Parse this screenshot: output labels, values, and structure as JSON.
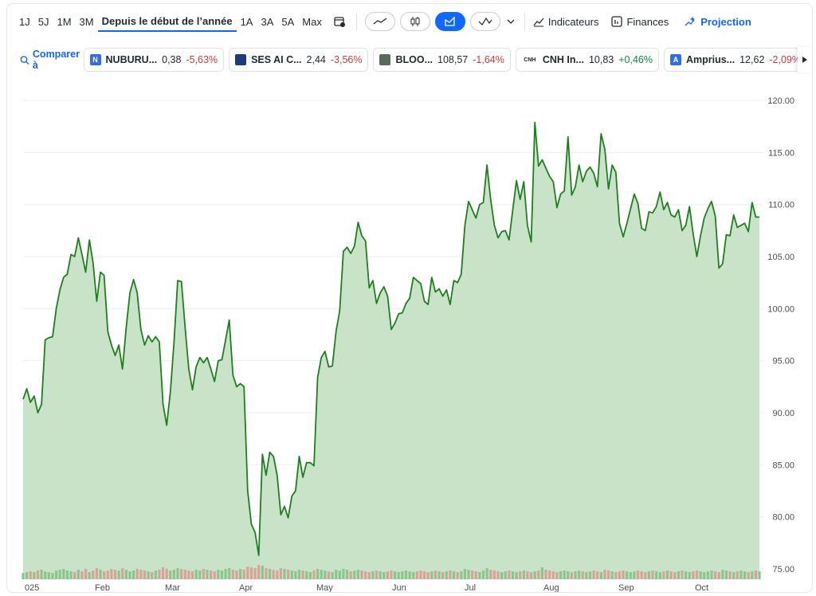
{
  "range_tabs": [
    {
      "label": "1J"
    },
    {
      "label": "5J"
    },
    {
      "label": "1M"
    },
    {
      "label": "3M"
    },
    {
      "label": "Depuis le début de l’année"
    },
    {
      "label": "1A"
    },
    {
      "label": "3A"
    },
    {
      "label": "5A"
    },
    {
      "label": "Max"
    }
  ],
  "active_range": "Depuis le début de l’année",
  "tools": {
    "indicators": "Indicateurs",
    "finances": "Finances",
    "projection": "Projection"
  },
  "compare": {
    "label": "Comparer à",
    "tickers": [
      {
        "logo": "N",
        "logo_color": "#3a6be0",
        "name": "NUBURU...",
        "price": "0,38",
        "change": "-5,63%",
        "dir": "neg"
      },
      {
        "logo": "",
        "logo_color": "#1d3b7a",
        "name": "SES AI C...",
        "price": "2,44",
        "change": "-3,56%",
        "dir": "neg"
      },
      {
        "logo": "",
        "logo_color": "#5a6a5a",
        "name": "BLOO...",
        "price": "108,57",
        "change": "-1,64%",
        "dir": "neg"
      },
      {
        "logo": "CNH",
        "logo_color": "#222222",
        "name": "CNH In...",
        "price": "10,83",
        "change": "+0,46%",
        "dir": "pos"
      },
      {
        "logo": "A",
        "logo_color": "#2f6fe6",
        "name": "Amprius...",
        "price": "12,62",
        "change": "-2,09%",
        "dir": "neg"
      }
    ]
  },
  "chart_data": {
    "type": "area",
    "x_tick_labels": [
      "025",
      "Feb",
      "Mar",
      "Apr",
      "May",
      "Jun",
      "Jul",
      "Aug",
      "Sep",
      "Oct"
    ],
    "y_tick_labels": [
      "75.00",
      "80.00",
      "85.00",
      "90.00",
      "95.00",
      "100.00",
      "105.00",
      "110.00",
      "115.00",
      "120.00"
    ],
    "ylim": [
      74,
      121
    ],
    "grid": true,
    "colors": {
      "line": "#1f7f1f",
      "fill": "#c8e3c8",
      "vol_up": "#8cc68c",
      "vol_down": "#d9a29a"
    },
    "series": [
      {
        "values": [
          91.3,
          92.3,
          91.0,
          91.6,
          90.0,
          90.8,
          97.0,
          97.2,
          97.3,
          100.0,
          101.8,
          103.0,
          103.3,
          105.2,
          105.0,
          106.8,
          105.2,
          103.5,
          106.6,
          104.4,
          100.7,
          103.5,
          103.2,
          97.8,
          96.5,
          95.5,
          96.5,
          94.2,
          98.2,
          101.5,
          102.8,
          101.5,
          98.0,
          96.5,
          97.4,
          96.8,
          97.3,
          96.8,
          90.8,
          88.8,
          92.0,
          96.8,
          102.7,
          102.6,
          98.2,
          94.2,
          92.2,
          94.4,
          95.3,
          94.8,
          95.3,
          94.2,
          93.0,
          95.0,
          95.1,
          97.0,
          98.9,
          93.6,
          92.5,
          92.8,
          92.5,
          82.5,
          79.3,
          78.5,
          76.3,
          86.0,
          84.0,
          86.2,
          85.8,
          84.0,
          80.2,
          81.0,
          79.9,
          82.0,
          82.5,
          85.8,
          83.8,
          85.2,
          85.2,
          84.9,
          93.4,
          95.3,
          95.9,
          94.4,
          94.5,
          97.8,
          99.8,
          105.5,
          105.9,
          105.3,
          106.0,
          108.3,
          107.0,
          106.5,
          102.0,
          102.7,
          100.5,
          101.5,
          102.1,
          101.2,
          98.0,
          98.6,
          99.5,
          99.6,
          100.5,
          101.0,
          103.0,
          102.7,
          102.4,
          100.7,
          100.4,
          103.0,
          101.6,
          101.9,
          101.2,
          101.8,
          100.4,
          102.7,
          102.5,
          103.3,
          108.0,
          110.3,
          109.5,
          108.7,
          110.0,
          110.2,
          113.8,
          110.5,
          108.0,
          106.8,
          107.4,
          107.5,
          106.6,
          109.5,
          112.3,
          110.5,
          112.2,
          108.0,
          106.4,
          117.9,
          113.7,
          114.3,
          113.5,
          112.7,
          112.2,
          109.7,
          111.0,
          111.3,
          116.5,
          110.9,
          111.7,
          113.8,
          112.2,
          113.2,
          113.6,
          113.0,
          111.7,
          116.8,
          115.3,
          111.5,
          113.8,
          113.1,
          108.2,
          106.9,
          108.2,
          109.6,
          111.0,
          110.1,
          107.7,
          107.5,
          109.3,
          109.2,
          109.8,
          111.2,
          109.5,
          110.2,
          109.0,
          108.8,
          109.5,
          107.5,
          108.0,
          109.8,
          107.2,
          105.0,
          107.0,
          108.7,
          109.6,
          110.3,
          108.9,
          103.9,
          104.3,
          107.1,
          107.0,
          109.0,
          107.8,
          108.0,
          108.2,
          107.4,
          110.2,
          108.8,
          108.8
        ]
      }
    ],
    "volume": [
      8,
      9,
      10,
      9,
      11,
      12,
      10,
      9,
      8,
      11,
      12,
      13,
      11,
      10,
      9,
      12,
      10,
      13,
      9,
      11,
      14,
      12,
      10,
      11,
      13,
      12,
      11,
      14,
      12,
      10,
      11,
      13,
      12,
      11,
      10,
      9,
      11,
      12,
      15,
      13,
      11,
      12,
      14,
      13,
      12,
      11,
      10,
      12,
      11,
      13,
      12,
      11,
      10,
      12,
      11,
      13,
      14,
      12,
      11,
      13,
      12,
      16,
      15,
      14,
      18,
      17,
      14,
      13,
      12,
      11,
      14,
      13,
      12,
      11,
      10,
      12,
      11,
      10,
      9,
      11,
      13,
      12,
      11,
      10,
      9,
      12,
      11,
      13,
      12,
      10,
      11,
      12,
      11,
      10,
      9,
      10,
      11,
      10,
      9,
      10,
      11,
      10,
      9,
      10,
      11,
      10,
      9,
      10,
      11,
      10,
      9,
      10,
      11,
      10,
      9,
      10,
      11,
      10,
      9,
      10,
      13,
      12,
      11,
      10,
      9,
      11,
      14,
      12,
      11,
      10,
      9,
      10,
      11,
      10,
      9,
      10,
      11,
      10,
      9,
      10,
      11,
      15,
      12,
      11,
      10,
      9,
      10,
      11,
      10,
      9,
      10,
      11,
      10,
      9,
      10,
      11,
      10,
      9,
      12,
      11,
      10,
      9,
      10,
      11,
      10,
      9,
      10,
      11,
      10,
      9,
      10,
      11,
      10,
      9,
      10,
      11,
      10,
      9,
      10,
      11,
      10,
      9,
      10,
      11,
      10,
      9,
      10,
      11,
      10,
      9,
      12,
      11,
      10,
      9,
      10,
      11,
      10,
      9,
      10,
      11,
      10
    ]
  }
}
